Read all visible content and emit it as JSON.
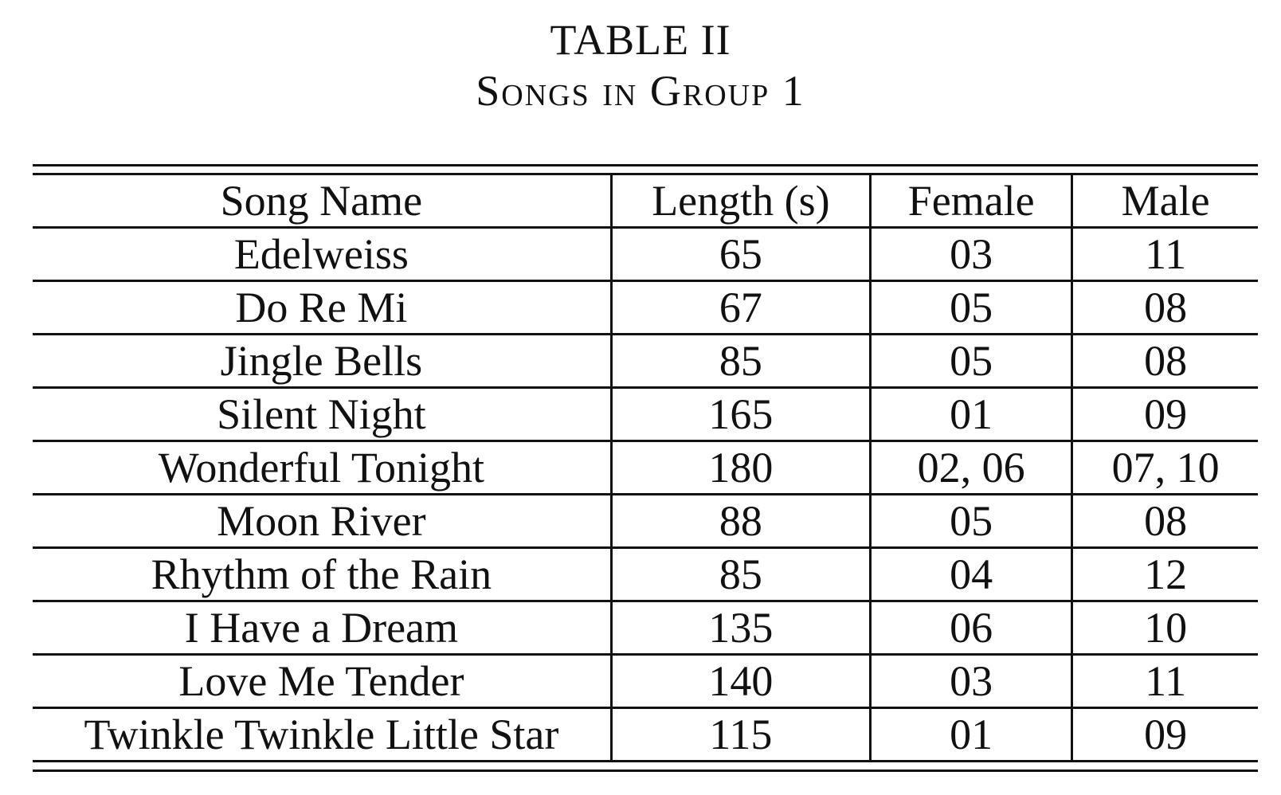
{
  "caption": {
    "number": "TABLE II",
    "title": "Songs in Group 1"
  },
  "table": {
    "headers": [
      "Song Name",
      "Length (s)",
      "Female",
      "Male"
    ],
    "rows": [
      [
        "Edelweiss",
        "65",
        "03",
        "11"
      ],
      [
        "Do Re Mi",
        "67",
        "05",
        "08"
      ],
      [
        "Jingle Bells",
        "85",
        "05",
        "08"
      ],
      [
        "Silent Night",
        "165",
        "01",
        "09"
      ],
      [
        "Wonderful Tonight",
        "180",
        "02, 06",
        "07, 10"
      ],
      [
        "Moon River",
        "88",
        "05",
        "08"
      ],
      [
        "Rhythm of the Rain",
        "85",
        "04",
        "12"
      ],
      [
        "I Have a Dream",
        "135",
        "06",
        "10"
      ],
      [
        "Love Me Tender",
        "140",
        "03",
        "11"
      ],
      [
        "Twinkle Twinkle Little Star",
        "115",
        "01",
        "09"
      ]
    ]
  }
}
